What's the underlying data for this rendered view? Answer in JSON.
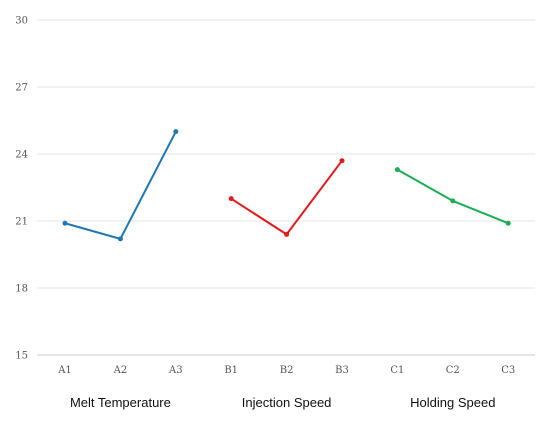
{
  "chart_data": {
    "type": "line",
    "ylim": [
      15,
      30
    ],
    "yticks": [
      "15",
      "18",
      "21",
      "24",
      "27",
      "30"
    ],
    "grid": true,
    "groups": [
      {
        "label": "Melt Temperature",
        "color": "#1f77b4",
        "points": [
          {
            "x": "A1",
            "y": 20.9
          },
          {
            "x": "A2",
            "y": 20.2
          },
          {
            "x": "A3",
            "y": 25.0
          }
        ]
      },
      {
        "label": "Injection Speed",
        "color": "#e31a1c",
        "points": [
          {
            "x": "B1",
            "y": 22.0
          },
          {
            "x": "B2",
            "y": 20.4
          },
          {
            "x": "B3",
            "y": 23.7
          }
        ]
      },
      {
        "label": "Holding Speed",
        "color": "#1aaf54",
        "points": [
          {
            "x": "C1",
            "y": 23.3
          },
          {
            "x": "C2",
            "y": 21.9
          },
          {
            "x": "C3",
            "y": 20.9
          }
        ]
      }
    ]
  }
}
